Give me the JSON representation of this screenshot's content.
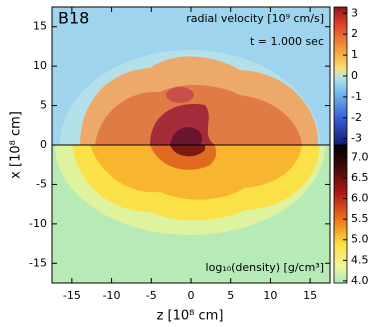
{
  "chart_data": {
    "type": "image",
    "title": "B18",
    "annotations": [
      "radial velocity [10⁹ cm/s]",
      "t = 1.000 sec",
      "log₁₀(density) [g/cm³]"
    ],
    "xlabel": "z [10⁸ cm]",
    "ylabel": "x [10⁸ cm]",
    "xlim": [
      -17.5,
      17.5
    ],
    "xticks": [
      -15,
      -10,
      -5,
      0,
      5,
      10,
      15
    ],
    "ylim": [
      -17.5,
      17.5
    ],
    "yticks": [
      -15,
      -10,
      -5,
      0,
      5,
      10,
      15
    ],
    "colorbars": [
      {
        "lim": [
          -3.3,
          3.3
        ],
        "ticks": [
          3,
          2,
          1,
          0,
          -1,
          -2,
          -3
        ]
      },
      {
        "lim": [
          3.95,
          7.3
        ],
        "ticks": [
          {
            "value": 7,
            "label": "7.0"
          },
          6.5,
          {
            "value": 6,
            "label": "6.0"
          },
          5.5,
          {
            "value": 5,
            "label": "5.0"
          },
          4.5,
          {
            "value": 4,
            "label": "4.0"
          }
        ]
      }
    ]
  }
}
